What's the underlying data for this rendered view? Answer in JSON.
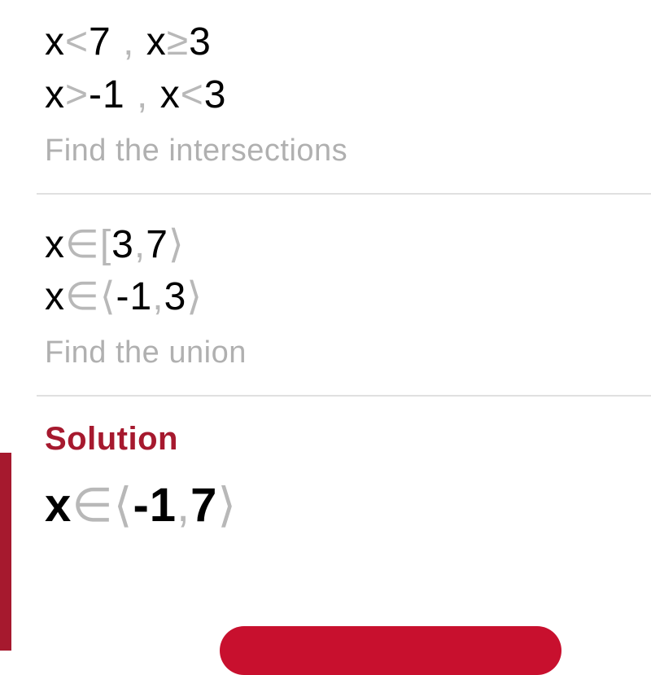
{
  "section1": {
    "line1": {
      "p1a": "x",
      "p1b": "<",
      "p1c": "7",
      "sep": " , ",
      "p2a": "x",
      "p2b": "≥",
      "p2c": "3"
    },
    "line2": {
      "p1a": "x",
      "p1b": ">",
      "p1c": "-1",
      "sep": " , ",
      "p2a": "x",
      "p2b": "<",
      "p2c": "3"
    },
    "instruction": "Find the intersections"
  },
  "section2": {
    "line1": {
      "x": "x",
      "in": "∈",
      "lb": "[",
      "a": "3",
      "c": ",",
      "b": "7",
      "rb": "⟩"
    },
    "line2": {
      "x": "x",
      "in": "∈",
      "lb": "⟨",
      "a": "-1",
      "c": ",",
      "b": "3",
      "rb": "⟩"
    },
    "instruction": "Find the union"
  },
  "solution": {
    "label": "Solution",
    "expr": {
      "x": "x",
      "in": "∈",
      "lb": "⟨",
      "a": "-1",
      "c": ",",
      "b": "7",
      "rb": "⟩"
    }
  },
  "colors": {
    "text": "#000000",
    "dim": "#b8b8b8",
    "instruction": "#b0b0b0",
    "accent": "#a6192e",
    "pill": "#c8102e",
    "divider": "#e0e0e0",
    "background": "#ffffff"
  }
}
